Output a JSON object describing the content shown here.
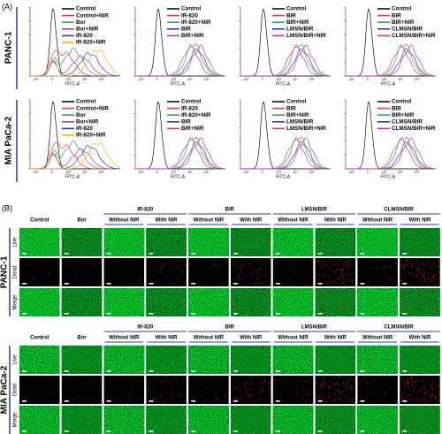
{
  "panel_a": {
    "label": "(A)",
    "x_axis_label": "FITC-A",
    "x_ticks": [
      "-10³",
      "0",
      "10³",
      "10⁴",
      "10⁵"
    ],
    "rows": [
      {
        "cell_line": "PANC-1",
        "plots": [
          {
            "legend": [
              {
                "name": "Control",
                "color": "#111111"
              },
              {
                "name": "Control+NIR",
                "color": "#e8335a"
              },
              {
                "name": "Bor",
                "color": "#2fa84f"
              },
              {
                "name": "Bor+NIR",
                "color": "#b03aa6"
              },
              {
                "name": "IR-820",
                "color": "#2b3fa8"
              },
              {
                "name": "IR-820+NIR",
                "color": "#f2b705"
              }
            ]
          },
          {
            "legend": [
              {
                "name": "Control",
                "color": "#111111"
              },
              {
                "name": "IR-820",
                "color": "#e8335a"
              },
              {
                "name": "IR-820+NIR",
                "color": "#2fa84f"
              },
              {
                "name": "BIR",
                "color": "#2b3fa8"
              },
              {
                "name": "BIR+NIR",
                "color": "#c2369a"
              }
            ]
          },
          {
            "legend": [
              {
                "name": "Control",
                "color": "#111111"
              },
              {
                "name": "BIR",
                "color": "#e8335a"
              },
              {
                "name": "BIR+NIR",
                "color": "#2fa84f"
              },
              {
                "name": "LMSN/BIR",
                "color": "#2b3fa8"
              },
              {
                "name": "LMSN/BIR+NIR",
                "color": "#c2369a"
              }
            ]
          },
          {
            "legend": [
              {
                "name": "Control",
                "color": "#111111"
              },
              {
                "name": "BIR",
                "color": "#e8335a"
              },
              {
                "name": "BIR+NIR",
                "color": "#2fa84f"
              },
              {
                "name": "CLMSN/BIR",
                "color": "#2b3fa8"
              },
              {
                "name": "CLMSN/BIR+NIR",
                "color": "#c2369a"
              }
            ]
          }
        ]
      },
      {
        "cell_line": "MIA PaCa-2",
        "plots": [
          {
            "legend": [
              {
                "name": "Control",
                "color": "#111111"
              },
              {
                "name": "Control+NIR",
                "color": "#e8335a"
              },
              {
                "name": "Bor",
                "color": "#2fa84f"
              },
              {
                "name": "Bor+NIR",
                "color": "#b03aa6"
              },
              {
                "name": "IR-820",
                "color": "#2b3fa8"
              },
              {
                "name": "IR-820+NIR",
                "color": "#f2b705"
              }
            ]
          },
          {
            "legend": [
              {
                "name": "Control",
                "color": "#111111"
              },
              {
                "name": "IR-820",
                "color": "#e8335a"
              },
              {
                "name": "IR-820+NIR",
                "color": "#2fa84f"
              },
              {
                "name": "BIR",
                "color": "#2b3fa8"
              },
              {
                "name": "BIR+NIR",
                "color": "#c2369a"
              }
            ]
          },
          {
            "legend": [
              {
                "name": "Control",
                "color": "#111111"
              },
              {
                "name": "BIR",
                "color": "#e8335a"
              },
              {
                "name": "BIR+NIR",
                "color": "#2fa84f"
              },
              {
                "name": "LMSN/BIR",
                "color": "#2b3fa8"
              },
              {
                "name": "LMSN/BIR+NIR",
                "color": "#c2369a"
              }
            ]
          },
          {
            "legend": [
              {
                "name": "Control",
                "color": "#111111"
              },
              {
                "name": "BIR",
                "color": "#e8335a"
              },
              {
                "name": "BIR+NIR",
                "color": "#2fa84f"
              },
              {
                "name": "CLMSN/BIR",
                "color": "#2b3fa8"
              },
              {
                "name": "CLMSN/BIR+NIR",
                "color": "#c2369a"
              }
            ]
          }
        ]
      }
    ]
  },
  "panel_b": {
    "label": "(B)",
    "headers": [
      {
        "title": "Control"
      },
      {
        "title": "Bor"
      },
      {
        "title": "IR-820",
        "sub": [
          "Without NIR",
          "With NIR"
        ]
      },
      {
        "title": "BIR",
        "sub": [
          "Without NIR",
          "With NIR"
        ]
      },
      {
        "title": "LMSN/BIR",
        "sub": [
          "Without NIR",
          "With NIR"
        ]
      },
      {
        "title": "CLMSN/BIR",
        "sub": [
          "Without NIR",
          "With NIR"
        ]
      }
    ],
    "row_labels": [
      "Live",
      "Dead",
      "Merge"
    ],
    "blocks": [
      {
        "cell_line": "PANC-1"
      },
      {
        "cell_line": "MIA PaCa-2"
      }
    ]
  }
}
